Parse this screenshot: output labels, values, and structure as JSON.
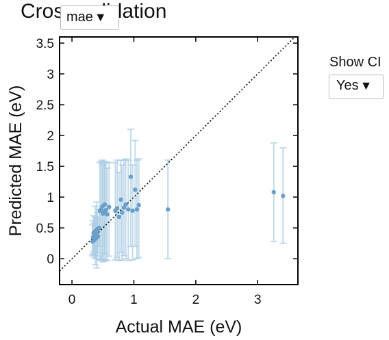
{
  "title": "Cross validation",
  "metric_dropdown": {
    "value": "mae",
    "icon": "caret-down-icon"
  },
  "ci_control": {
    "label": "Show CI",
    "value": "Yes",
    "icon": "caret-down-icon"
  },
  "chart_data": {
    "type": "scatter",
    "xlabel": "Actual MAE (eV)",
    "ylabel": "Predicted MAE (eV)",
    "xlim": [
      -0.2,
      3.65
    ],
    "ylim": [
      -0.42,
      3.6
    ],
    "xticks": [
      0,
      1,
      2,
      3
    ],
    "yticks": [
      0,
      0.5,
      1,
      1.5,
      2,
      2.5,
      3,
      3.5
    ],
    "xtick_labels": [
      "0",
      "1",
      "2",
      "3"
    ],
    "ytick_labels": [
      "0",
      "0.5",
      "1",
      "1.5",
      "2",
      "2.5",
      "3",
      "3.5"
    ],
    "reference_line": {
      "type": "y=x",
      "style": "dotted",
      "color": "#000000"
    },
    "point_color": "#6b9fc8",
    "errorbar_color": "#a9cce3",
    "grid": false,
    "points": [
      {
        "x": 0.33,
        "y": 0.28,
        "lo": 0.05,
        "hi": 0.55
      },
      {
        "x": 0.34,
        "y": 0.35,
        "lo": 0.08,
        "hi": 0.62
      },
      {
        "x": 0.35,
        "y": 0.42,
        "lo": 0.12,
        "hi": 0.7
      },
      {
        "x": 0.36,
        "y": 0.3,
        "lo": 0.02,
        "hi": 0.58
      },
      {
        "x": 0.37,
        "y": 0.38,
        "lo": 0.06,
        "hi": 0.68
      },
      {
        "x": 0.38,
        "y": 0.45,
        "lo": -0.1,
        "hi": 0.85
      },
      {
        "x": 0.39,
        "y": 0.33,
        "lo": 0.0,
        "hi": 0.66
      },
      {
        "x": 0.4,
        "y": 0.4,
        "lo": -0.15,
        "hi": 0.92
      },
      {
        "x": 0.41,
        "y": 0.48,
        "lo": 0.1,
        "hi": 0.75
      },
      {
        "x": 0.42,
        "y": 0.36,
        "lo": 0.04,
        "hi": 0.64
      },
      {
        "x": 0.44,
        "y": 0.5,
        "lo": 0.2,
        "hi": 0.8
      },
      {
        "x": 0.45,
        "y": 0.78,
        "lo": -0.02,
        "hi": 1.56
      },
      {
        "x": 0.47,
        "y": 0.8,
        "lo": -0.03,
        "hi": 1.58
      },
      {
        "x": 0.49,
        "y": 0.85,
        "lo": 0.0,
        "hi": 1.6
      },
      {
        "x": 0.5,
        "y": 0.73,
        "lo": -0.05,
        "hi": 1.52
      },
      {
        "x": 0.52,
        "y": 0.76,
        "lo": -0.04,
        "hi": 1.55
      },
      {
        "x": 0.53,
        "y": 0.88,
        "lo": 0.08,
        "hi": 1.58
      },
      {
        "x": 0.55,
        "y": 0.79,
        "lo": -0.02,
        "hi": 1.57
      },
      {
        "x": 0.57,
        "y": 0.72,
        "lo": -0.03,
        "hi": 1.47
      },
      {
        "x": 0.6,
        "y": 0.84,
        "lo": 0.04,
        "hi": 1.56
      },
      {
        "x": 0.7,
        "y": 0.78,
        "lo": -0.02,
        "hi": 1.56
      },
      {
        "x": 0.73,
        "y": 0.82,
        "lo": 0.02,
        "hi": 1.6
      },
      {
        "x": 0.76,
        "y": 0.68,
        "lo": -0.03,
        "hi": 1.4
      },
      {
        "x": 0.79,
        "y": 0.96,
        "lo": 0.1,
        "hi": 1.6
      },
      {
        "x": 0.81,
        "y": 0.75,
        "lo": -0.02,
        "hi": 1.52
      },
      {
        "x": 0.84,
        "y": 0.83,
        "lo": 0.05,
        "hi": 1.6
      },
      {
        "x": 0.87,
        "y": 0.88,
        "lo": 0.0,
        "hi": 1.62
      },
      {
        "x": 0.91,
        "y": 0.8,
        "lo": -0.03,
        "hi": 1.6
      },
      {
        "x": 0.95,
        "y": 1.33,
        "lo": 0.2,
        "hi": 2.1
      },
      {
        "x": 0.98,
        "y": 0.78,
        "lo": -0.02,
        "hi": 1.52
      },
      {
        "x": 1.02,
        "y": 1.12,
        "lo": 0.2,
        "hi": 1.92
      },
      {
        "x": 1.05,
        "y": 0.8,
        "lo": 0.0,
        "hi": 1.6
      },
      {
        "x": 1.08,
        "y": 0.87,
        "lo": 0.02,
        "hi": 1.62
      },
      {
        "x": 1.55,
        "y": 0.8,
        "lo": 0.0,
        "hi": 1.6
      },
      {
        "x": 3.26,
        "y": 1.08,
        "lo": 0.28,
        "hi": 1.88
      },
      {
        "x": 3.41,
        "y": 1.02,
        "lo": 0.25,
        "hi": 1.8
      }
    ]
  }
}
